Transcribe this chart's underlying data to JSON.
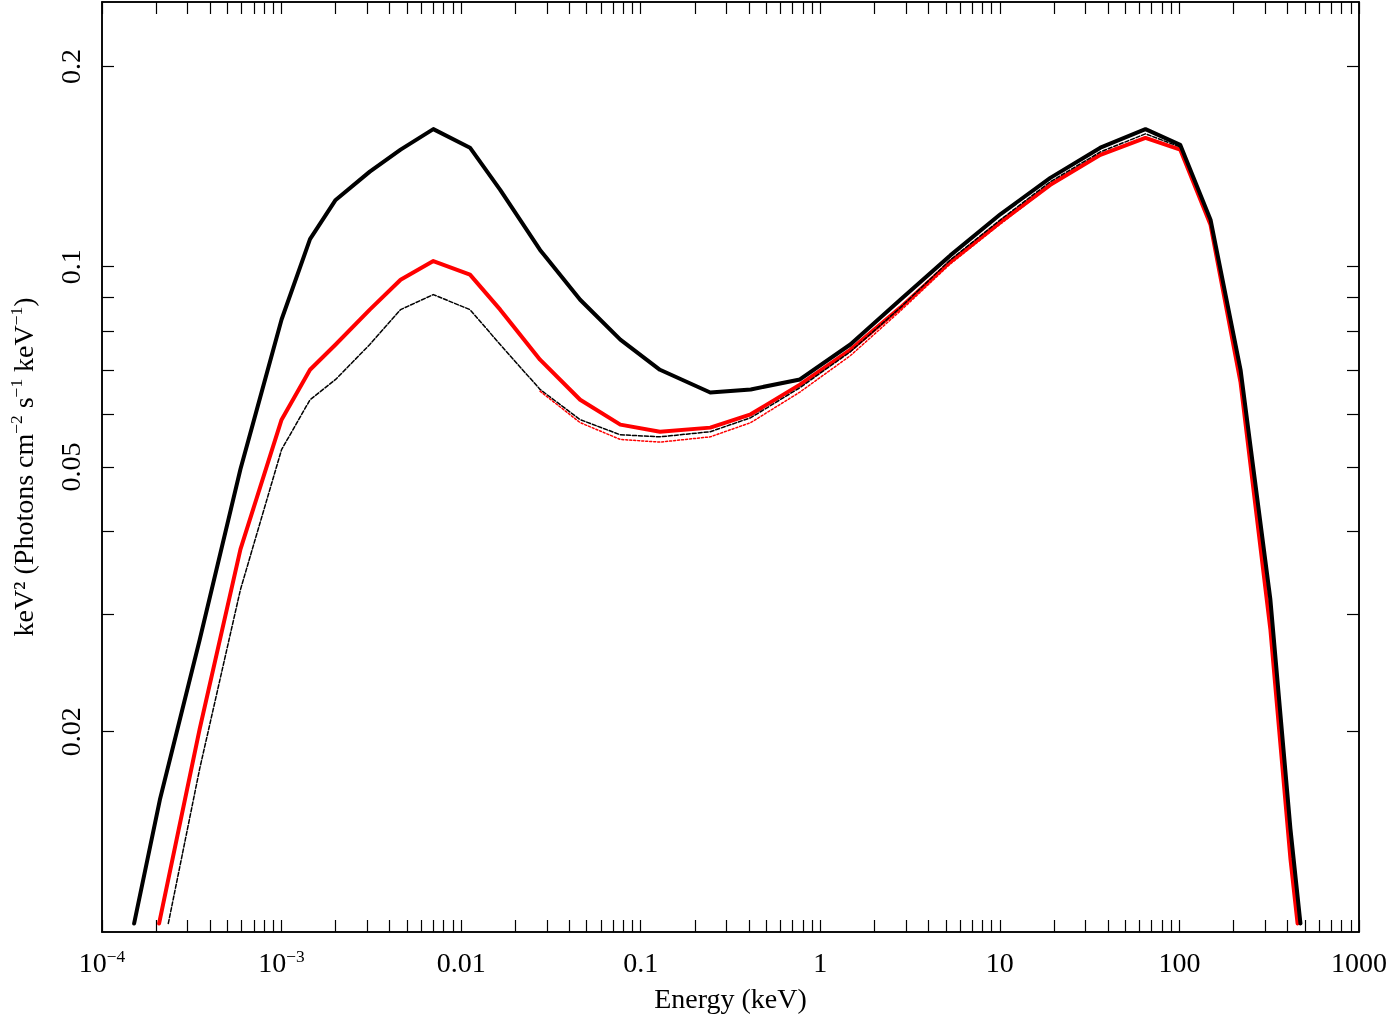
{
  "chart_data": {
    "type": "line",
    "xlabel": "Energy (keV)",
    "ylabel": "keV² (Photons cm$^{−2}$ s$^{−1}$ keV$^{−1}$)",
    "log": "xy",
    "xlim": [
      0.0001,
      1000
    ],
    "ylim": [
      0.01,
      0.25
    ],
    "xticks": [
      {
        "value": 0.0001,
        "label": "10$^{−4}$"
      },
      {
        "value": 0.0002,
        "label": null
      },
      {
        "value": 0.0003,
        "label": null
      },
      {
        "value": 0.0004,
        "label": null
      },
      {
        "value": 0.0005,
        "label": null
      },
      {
        "value": 0.0006,
        "label": null
      },
      {
        "value": 0.0007,
        "label": null
      },
      {
        "value": 0.0008,
        "label": null
      },
      {
        "value": 0.0009,
        "label": null
      },
      {
        "value": 0.001,
        "label": "10$^{−3}$"
      },
      {
        "value": 0.002,
        "label": null
      },
      {
        "value": 0.003,
        "label": null
      },
      {
        "value": 0.004,
        "label": null
      },
      {
        "value": 0.005,
        "label": null
      },
      {
        "value": 0.006,
        "label": null
      },
      {
        "value": 0.007,
        "label": null
      },
      {
        "value": 0.008,
        "label": null
      },
      {
        "value": 0.009,
        "label": null
      },
      0.01,
      {
        "value": 0.02,
        "label": null
      },
      {
        "value": 0.03,
        "label": null
      },
      {
        "value": 0.04,
        "label": null
      },
      {
        "value": 0.05,
        "label": null
      },
      {
        "value": 0.06,
        "label": null
      },
      {
        "value": 0.07,
        "label": null
      },
      {
        "value": 0.08,
        "label": null
      },
      {
        "value": 0.09,
        "label": null
      },
      0.1,
      {
        "value": 0.2,
        "label": null
      },
      {
        "value": 0.3,
        "label": null
      },
      {
        "value": 0.4,
        "label": null
      },
      {
        "value": 0.5,
        "label": null
      },
      {
        "value": 0.6,
        "label": null
      },
      {
        "value": 0.7,
        "label": null
      },
      {
        "value": 0.8,
        "label": null
      },
      {
        "value": 0.9,
        "label": null
      },
      1,
      {
        "value": 2,
        "label": null
      },
      {
        "value": 3,
        "label": null
      },
      {
        "value": 4,
        "label": null
      },
      {
        "value": 5,
        "label": null
      },
      {
        "value": 6,
        "label": null
      },
      {
        "value": 7,
        "label": null
      },
      {
        "value": 8,
        "label": null
      },
      {
        "value": 9,
        "label": null
      },
      10,
      {
        "value": 20,
        "label": null
      },
      {
        "value": 30,
        "label": null
      },
      {
        "value": 40,
        "label": null
      },
      {
        "value": 50,
        "label": null
      },
      {
        "value": 60,
        "label": null
      },
      {
        "value": 70,
        "label": null
      },
      {
        "value": 80,
        "label": null
      },
      {
        "value": 90,
        "label": null
      },
      100,
      {
        "value": 200,
        "label": null
      },
      {
        "value": 300,
        "label": null
      },
      {
        "value": 400,
        "label": null
      },
      {
        "value": 500,
        "label": null
      },
      {
        "value": 600,
        "label": null
      },
      {
        "value": 700,
        "label": null
      },
      {
        "value": 800,
        "label": null
      },
      {
        "value": 900,
        "label": null
      },
      1000
    ],
    "yticks": [
      0.02,
      {
        "value": 0.03,
        "label": null
      },
      {
        "value": 0.04,
        "label": null
      },
      0.05,
      {
        "value": 0.06,
        "label": null
      },
      {
        "value": 0.07,
        "label": null
      },
      {
        "value": 0.08,
        "label": null
      },
      {
        "value": 0.09,
        "label": null
      },
      0.1,
      0.2
    ],
    "series": [
      {
        "color": "#000000",
        "line_style": "solid",
        "x": [
          0.000151,
          0.00021,
          0.00035,
          0.00059,
          0.001,
          0.00144,
          0.002,
          0.0031,
          0.0046,
          0.007,
          0.0112,
          0.0165,
          0.0275,
          0.046,
          0.077,
          0.128,
          0.244,
          0.41,
          0.77,
          1.47,
          2.79,
          5.3,
          10.1,
          19.1,
          36.3,
          64.7,
          101,
          149,
          219,
          321,
          415,
          472
        ],
        "values": [
          0.0103,
          0.0158,
          0.0275,
          0.0496,
          0.0833,
          0.11,
          0.126,
          0.139,
          0.15,
          0.161,
          0.151,
          0.1305,
          0.106,
          0.0892,
          0.0777,
          0.07,
          0.0647,
          0.0654,
          0.0677,
          0.0764,
          0.0892,
          0.104,
          0.12,
          0.136,
          0.151,
          0.161,
          0.1525,
          0.1177,
          0.07,
          0.0316,
          0.0143,
          0.0103
        ]
      },
      {
        "color": "#ff0000",
        "line_style": "solid",
        "x": [
          0.000208,
          0.00035,
          0.00059,
          0.001,
          0.00144,
          0.002,
          0.0031,
          0.0046,
          0.007,
          0.0112,
          0.0165,
          0.0275,
          0.046,
          0.077,
          0.128,
          0.244,
          0.41,
          0.77,
          1.47,
          2.79,
          5.3,
          10.1,
          19.1,
          36.3,
          64.7,
          101,
          149,
          219,
          321,
          415,
          455
        ],
        "values": [
          0.0103,
          0.0202,
          0.0376,
          0.0589,
          0.07,
          0.0764,
          0.0862,
          0.0956,
          0.102,
          0.0973,
          0.0862,
          0.0725,
          0.0631,
          0.0579,
          0.0565,
          0.0573,
          0.06,
          0.0665,
          0.075,
          0.0868,
          0.1017,
          0.1168,
          0.1328,
          0.1473,
          0.1562,
          0.15,
          0.1156,
          0.067,
          0.0285,
          0.0129,
          0.0103
        ]
      },
      {
        "color": "#000000",
        "line_style": "dashed",
        "x": [
          0.000234,
          0.00035,
          0.00059,
          0.001,
          0.00144,
          0.002,
          0.0031,
          0.0046,
          0.007,
          0.0112,
          0.0165,
          0.0275,
          0.046,
          0.077,
          0.128,
          0.244,
          0.41,
          0.77,
          1.47,
          2.79,
          5.3,
          10.1,
          19.1,
          36.3,
          64.7,
          101,
          149
        ],
        "values": [
          0.0103,
          0.0176,
          0.0327,
          0.0531,
          0.0631,
          0.0677,
          0.0764,
          0.0862,
          0.0908,
          0.0862,
          0.0764,
          0.0654,
          0.0589,
          0.0559,
          0.0555,
          0.0565,
          0.0593,
          0.0658,
          0.0745,
          0.0868,
          0.1024,
          0.1177,
          0.1342,
          0.1488,
          0.1584,
          0.1514,
          0.1168
        ]
      },
      {
        "color": "#ff0000",
        "line_style": "dotted",
        "x": [
          0.0275,
          0.046,
          0.077,
          0.128,
          0.244,
          0.41,
          0.77,
          1.47,
          2.79,
          5.3,
          10.1,
          19.1,
          36.3,
          64.7,
          101,
          149
        ],
        "values": [
          0.065,
          0.0583,
          0.055,
          0.0545,
          0.0555,
          0.0583,
          0.0648,
          0.0735,
          0.0858,
          0.101,
          0.116,
          0.1325,
          0.147,
          0.1562,
          0.15,
          0.1156
        ]
      }
    ]
  }
}
